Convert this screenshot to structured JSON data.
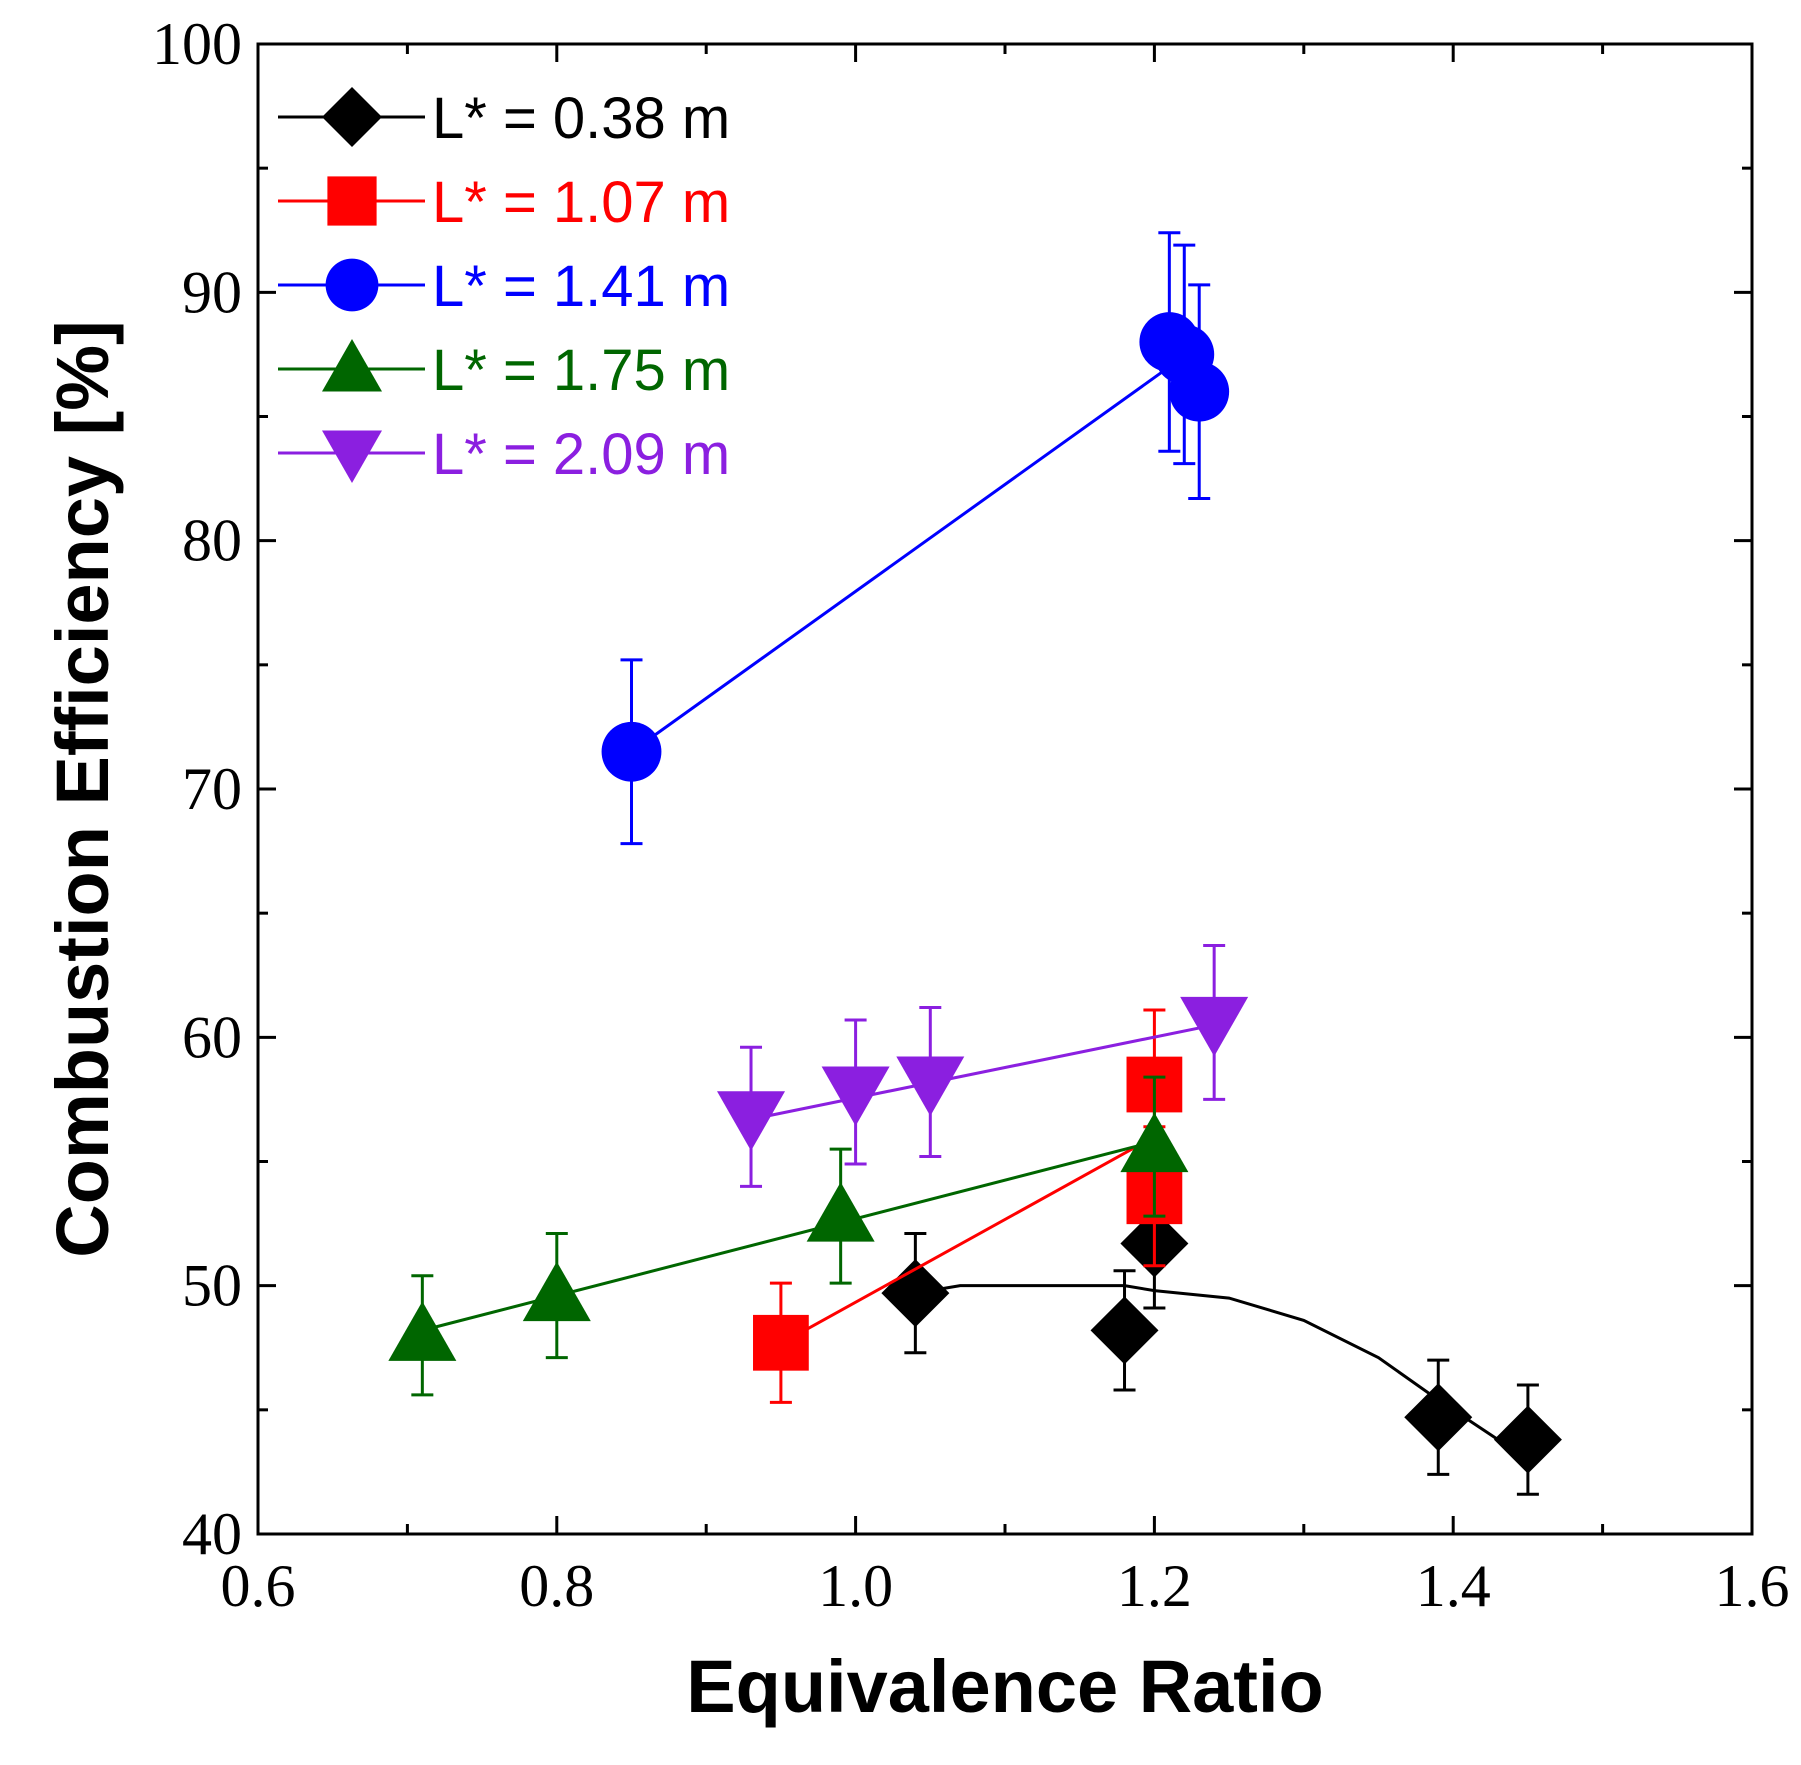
{
  "chart_data": {
    "type": "scatter",
    "title": "",
    "xlabel": "Equivalence Ratio",
    "ylabel": "Combustion Efficiency [%]",
    "xlim": [
      0.6,
      1.6
    ],
    "ylim": [
      40,
      100
    ],
    "x_ticks": [
      "0.6",
      "0.8",
      "1.0",
      "1.2",
      "1.4",
      "1.6"
    ],
    "y_ticks": [
      "40",
      "50",
      "60",
      "70",
      "80",
      "90",
      "100"
    ],
    "grid": false,
    "legend_position": "top-left",
    "series": [
      {
        "name": "L* = 0.38 m",
        "color": "#000000",
        "marker": "diamond",
        "points": [
          {
            "x": 1.04,
            "y": 49.7,
            "err": 2.4
          },
          {
            "x": 1.18,
            "y": 48.2,
            "err": 2.4
          },
          {
            "x": 1.2,
            "y": 51.7,
            "err": 2.6
          },
          {
            "x": 1.39,
            "y": 44.7,
            "err": 2.3
          },
          {
            "x": 1.45,
            "y": 43.8,
            "err": 2.2
          }
        ],
        "trend": [
          {
            "x": 1.04,
            "y": 49.7
          },
          {
            "x": 1.07,
            "y": 50.0
          },
          {
            "x": 1.18,
            "y": 50.0
          },
          {
            "x": 1.2,
            "y": 49.8
          },
          {
            "x": 1.25,
            "y": 49.5
          },
          {
            "x": 1.3,
            "y": 48.6
          },
          {
            "x": 1.35,
            "y": 47.1
          },
          {
            "x": 1.39,
            "y": 45.4
          },
          {
            "x": 1.43,
            "y": 43.8
          }
        ]
      },
      {
        "name": "L* = 1.07 m",
        "color": "#ff0000",
        "marker": "square",
        "points": [
          {
            "x": 0.95,
            "y": 47.7,
            "err": 2.4
          },
          {
            "x": 1.2,
            "y": 58.1,
            "err": 3.0
          },
          {
            "x": 1.2,
            "y": 53.6,
            "err": 2.8
          }
        ],
        "trend": [
          {
            "x": 0.96,
            "y": 48.0
          },
          {
            "x": 1.2,
            "y": 56.0
          }
        ]
      },
      {
        "name": "L* = 1.41 m",
        "color": "#0000ff",
        "marker": "circle",
        "points": [
          {
            "x": 0.85,
            "y": 71.5,
            "err": 3.7
          },
          {
            "x": 1.21,
            "y": 88.0,
            "err": 4.4
          },
          {
            "x": 1.22,
            "y": 87.5,
            "err": 4.4
          },
          {
            "x": 1.23,
            "y": 86.0,
            "err": 4.3
          }
        ],
        "trend": [
          {
            "x": 0.85,
            "y": 71.5
          },
          {
            "x": 1.21,
            "y": 87.0
          }
        ]
      },
      {
        "name": "L* = 1.75 m",
        "color": "#006600",
        "marker": "triangle-up",
        "points": [
          {
            "x": 0.71,
            "y": 48.0,
            "err": 2.4
          },
          {
            "x": 0.8,
            "y": 49.6,
            "err": 2.5
          },
          {
            "x": 0.99,
            "y": 52.8,
            "err": 2.7
          },
          {
            "x": 1.2,
            "y": 55.6,
            "err": 2.8
          }
        ],
        "trend": [
          {
            "x": 0.71,
            "y": 48.2
          },
          {
            "x": 1.2,
            "y": 55.8
          }
        ]
      },
      {
        "name": "L* = 2.09 m",
        "color": "#8b1fe0",
        "marker": "triangle-down",
        "points": [
          {
            "x": 0.93,
            "y": 56.8,
            "err": 2.8
          },
          {
            "x": 1.0,
            "y": 57.8,
            "err": 2.9
          },
          {
            "x": 1.05,
            "y": 58.2,
            "err": 3.0
          },
          {
            "x": 1.24,
            "y": 60.6,
            "err": 3.1
          }
        ],
        "trend": [
          {
            "x": 0.93,
            "y": 56.7
          },
          {
            "x": 1.24,
            "y": 60.5
          }
        ]
      }
    ]
  }
}
